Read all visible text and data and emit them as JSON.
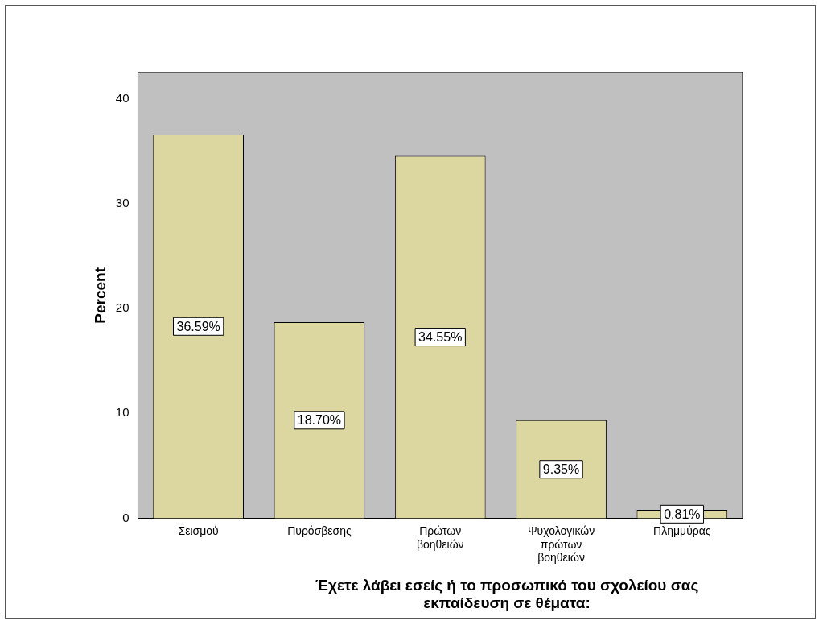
{
  "chart_data": {
    "type": "bar",
    "xlabel": "Έχετε λάβει εσείς ή το προσωπικό του σχολείου σας εκπαίδευση σε θέματα:",
    "ylabel": "Percent",
    "categories": [
      "Σεισμού",
      "Πυρόσβεσης",
      "Πρώτων βοηθειών",
      "Ψυχολογικών πρώτων βοηθειών",
      "Πλημμύρας"
    ],
    "values": [
      36.59,
      18.7,
      34.55,
      9.35,
      0.81
    ],
    "value_labels": [
      "36.59%",
      "18.70%",
      "34.55%",
      "9.35%",
      "0.81%"
    ],
    "color": "#dcd6a0",
    "ylim": [
      0,
      42.5
    ],
    "yticks": [
      0,
      10,
      20,
      30,
      40
    ],
    "grid": false,
    "legend": false
  }
}
